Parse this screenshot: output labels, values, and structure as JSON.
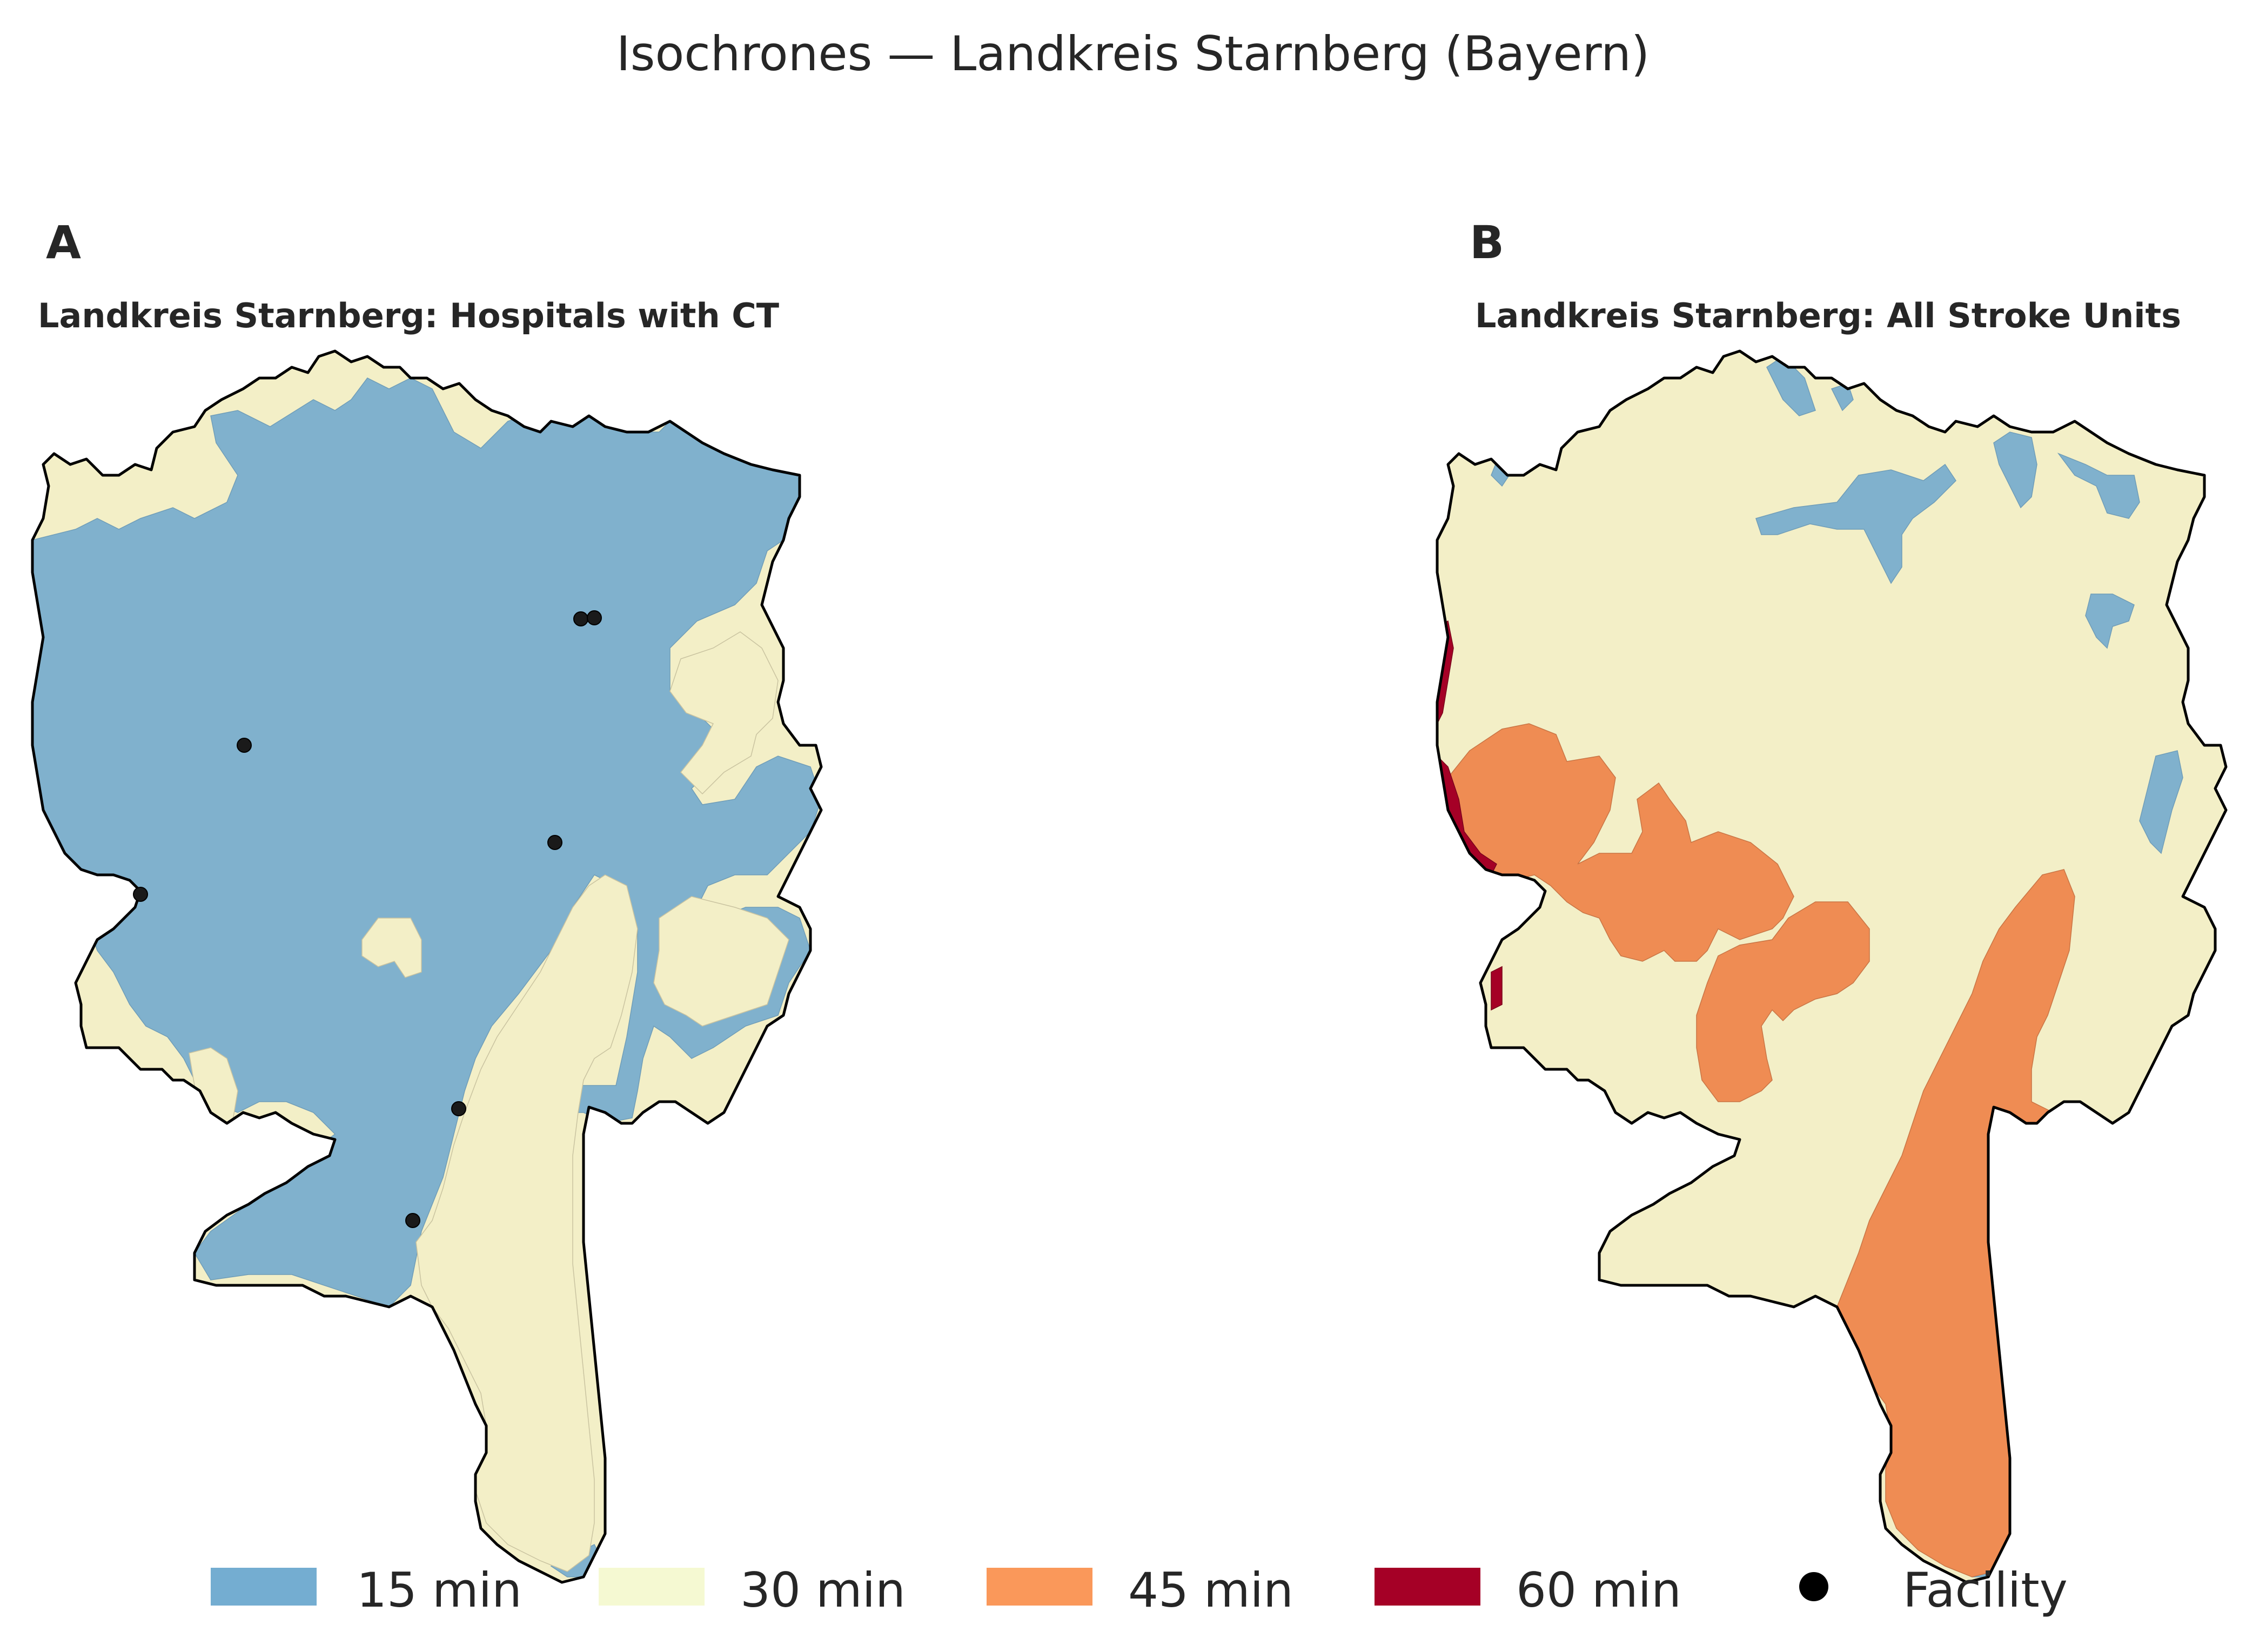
{
  "title": "Isochrones — Landkreis Starnberg (Bayern)",
  "panels": [
    {
      "letter": "A",
      "title": "Landkreis Starnberg: Hospitals with CT"
    },
    {
      "letter": "B",
      "title": "Landkreis Starnberg: All Stroke Units"
    }
  ],
  "colors": {
    "min15": "#80b1cd",
    "min30": "#f3efc7",
    "min45": "#ef8c53",
    "min60": "#a50026",
    "facility": "#1a1a1a",
    "boundary": "#000000"
  },
  "legend": [
    {
      "label": "15 min",
      "color": "#74add1",
      "kind": "patch"
    },
    {
      "label": "30 min",
      "color": "#f5f9d2",
      "kind": "patch"
    },
    {
      "label": "45 min",
      "color": "#fa985a",
      "kind": "patch"
    },
    {
      "label": "60 min",
      "color": "#a50026",
      "kind": "patch"
    },
    {
      "label": "Facility",
      "color": "#000000",
      "kind": "marker"
    }
  ]
}
